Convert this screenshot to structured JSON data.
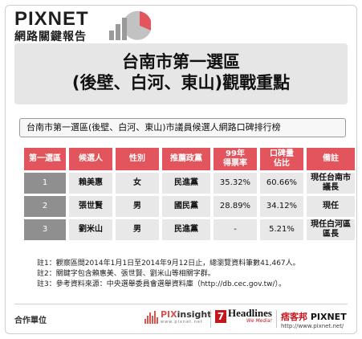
{
  "header": {
    "brand": "PIXNET",
    "subtitle": "網路關鍵報告"
  },
  "title": {
    "line1": "台南市第一選區",
    "line2": "(後壁、白河、東山)觀戰重點"
  },
  "table_caption": "台南市第一選區(後壁、白河、東山)市議員候選人網路口碑排行榜",
  "table": {
    "headers": [
      "第一選區",
      "候選人",
      "性別",
      "推薦政黨",
      "99年\n得票率",
      "口碑量\n佔比",
      "備註"
    ],
    "rows": [
      {
        "rank": "1",
        "name": "賴美惠",
        "gender": "女",
        "party": "民進黨",
        "vote_rate": "35.32%",
        "share": "60.66%",
        "note": "現任台南市\n議長"
      },
      {
        "rank": "2",
        "name": "張世賢",
        "gender": "男",
        "party": "國民黨",
        "vote_rate": "28.89%",
        "share": "34.12%",
        "note": "現任"
      },
      {
        "rank": "3",
        "name": "劉米山",
        "gender": "男",
        "party": "民進黨",
        "vote_rate": "-",
        "share": "5.21%",
        "note": "現任白河區\n區長"
      }
    ]
  },
  "notes": [
    "註1：觀察區間2014年1月1日至2014年9月12日止，總瀏覽資料筆數41,467人。",
    "註2：關鍵字包含賴惠美、張世賢、劉米山等相關字群。",
    "註3：參考資料來源：中央選舉委員會選舉資料庫（http://db.cec.gov.tw/）。"
  ],
  "footer": {
    "coop_label": "合作單位",
    "pixinsight_prefix": "PIX",
    "pixinsight_suffix": "insight",
    "pixinsight_url": "www.pixnet.net",
    "headlines_num": "7",
    "headlines_name": "Headlines",
    "headlines_tag": "We Media!",
    "pixnet_cn": "痞客邦",
    "pixnet_en": "PIXNET",
    "pixnet_url": "http://www.pixnet.net/"
  },
  "colors": {
    "header_red": "#e2555c",
    "rank_gray": "#8f8f8f",
    "cell_gray": "#e8e8e8",
    "title_bg": "#e6e6e6",
    "logo_red": "#e2555c"
  },
  "icons": {
    "logo_chart": "pie-bar-chart-icon",
    "pixinsight": "bar-signal-icon"
  }
}
